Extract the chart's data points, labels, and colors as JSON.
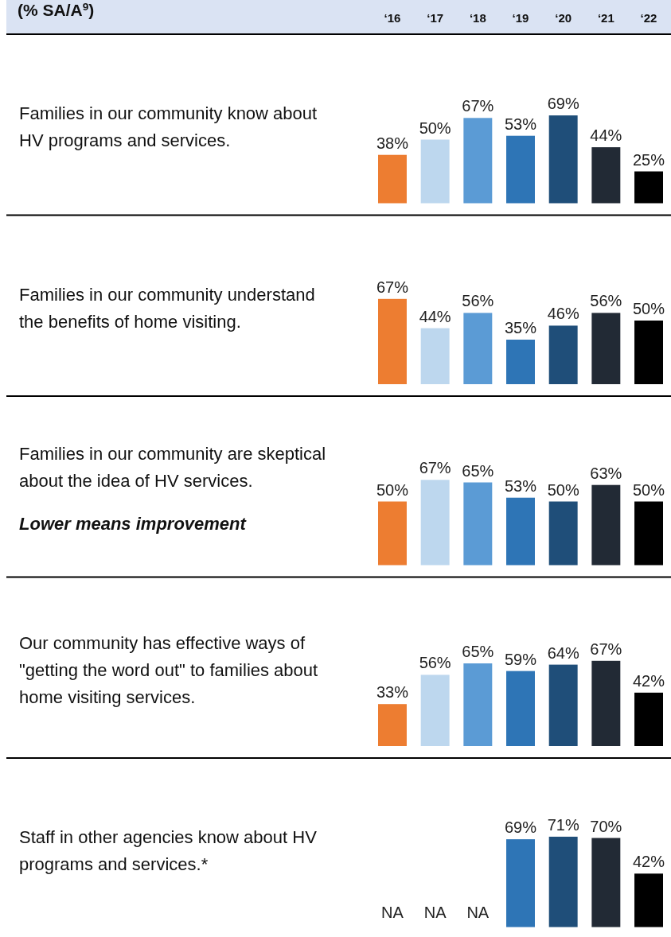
{
  "chart_data": [
    {
      "type": "bar",
      "ylabel": "(% SA/A$^{9}$)",
      "title": "Families in our community know about HV programs and services.",
      "categories": [
        "‘16",
        "‘17",
        "‘18",
        "‘19",
        "‘20",
        "‘21",
        "‘22"
      ],
      "values": [
        38,
        50,
        67,
        53,
        69,
        44,
        25
      ],
      "value_labels": [
        "38%",
        "50%",
        "67%",
        "53%",
        "69%",
        "44%",
        "25%"
      ],
      "colors": [
        "#ed7d31",
        "#bdd7ee",
        "#5b9bd5",
        "#2e75b6",
        "#1f4e79",
        "#222a35",
        "#000000"
      ],
      "tick_labels": "x"
    },
    {
      "type": "bar",
      "title": "Families in our community understand the benefits of home visiting.",
      "categories": [
        null,
        null,
        null,
        null,
        null,
        null,
        null
      ],
      "values": [
        67,
        44,
        56,
        35,
        46,
        56,
        50
      ],
      "value_labels": [
        "67%",
        "44%",
        "56%",
        "35%",
        "46%",
        "56%",
        "50%"
      ],
      "colors": [
        "#ed7d31",
        "#bdd7ee",
        "#5b9bd5",
        "#2e75b6",
        "#1f4e79",
        "#222a35",
        "#000000"
      ],
      "tick_labels": false
    },
    {
      "type": "bar",
      "title": "Families in our community are skeptical about the idea of HV services.",
      "annotations": [
        "Lower means improvement"
      ],
      "categories": [
        null,
        null,
        null,
        null,
        null,
        null,
        null
      ],
      "values": [
        50,
        67,
        65,
        53,
        50,
        63,
        50
      ],
      "value_labels": [
        "50%",
        "67%",
        "65%",
        "53%",
        "50%",
        "63%",
        "50%"
      ],
      "colors": [
        "#ed7d31",
        "#bdd7ee",
        "#5b9bd5",
        "#2e75b6",
        "#1f4e79",
        "#222a35",
        "#000000"
      ],
      "tick_labels": false
    },
    {
      "type": "bar",
      "title": "Our community has effective ways of \"getting the word out\" to families about home visiting services.",
      "categories": [
        null,
        null,
        null,
        null,
        null,
        null,
        null
      ],
      "values": [
        33,
        56,
        65,
        59,
        64,
        67,
        42
      ],
      "value_labels": [
        "33%",
        "56%",
        "65%",
        "59%",
        "64%",
        "67%",
        "42%"
      ],
      "colors": [
        "#ed7d31",
        "#bdd7ee",
        "#5b9bd5",
        "#2e75b6",
        "#1f4e79",
        "#222a35",
        "#000000"
      ],
      "tick_labels": false
    },
    {
      "type": "bar",
      "title": "Staff in other agencies know about HV programs and services.*",
      "categories": [
        null,
        null,
        null,
        null,
        null,
        null,
        null
      ],
      "values": [
        null,
        null,
        null,
        69,
        71,
        70,
        42
      ],
      "value_labels": [
        "NA",
        "NA",
        "NA",
        "69%",
        "71%",
        "70%",
        "42%"
      ],
      "colors": [
        null,
        null,
        null,
        "#2e75b6",
        "#1f4e79",
        "#222a35",
        "#000000"
      ],
      "tick_labels": false
    }
  ]
}
